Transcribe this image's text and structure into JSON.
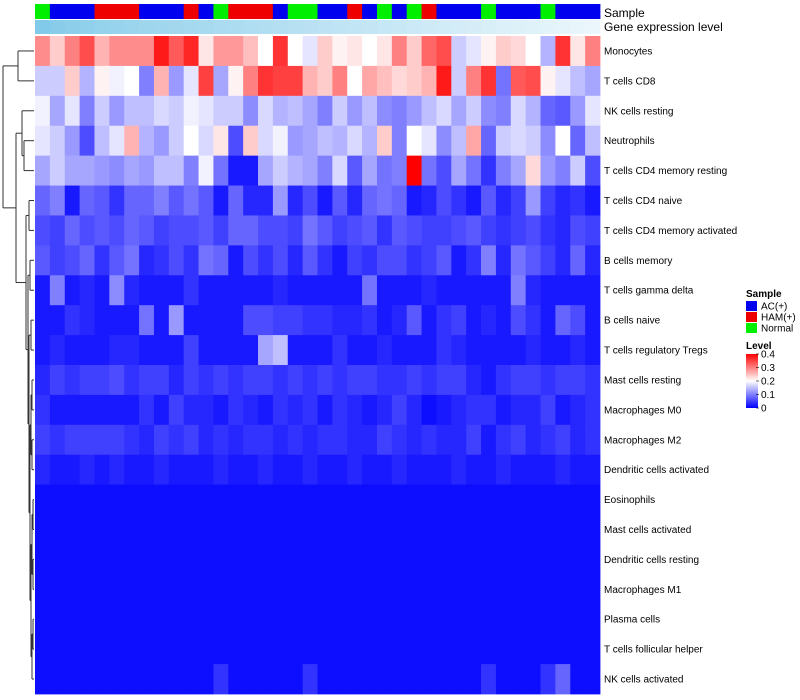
{
  "chart_data": {
    "type": "heatmap",
    "annotations": {
      "sample_label": "Sample",
      "gene_label": "Gene expression level"
    },
    "rows": [
      "Monocytes",
      "T cells CD8",
      "NK cells resting",
      "Neutrophils",
      "T cells CD4 memory resting",
      "T cells CD4 naive",
      "T cells CD4 memory activated",
      "B cells memory",
      "T cells gamma delta",
      "B cells naive",
      "T cells regulatory  Tregs",
      "Mast cells resting",
      "Macrophages M0",
      "Macrophages M2",
      "Dendritic cells activated",
      "Eosinophils",
      "Mast cells activated",
      "Dendritic cells resting",
      "Macrophages M1",
      "Plasma cells",
      "T cells follicular helper",
      "NK cells activated"
    ],
    "sample_groups": [
      "N",
      "A",
      "A",
      "A",
      "H",
      "H",
      "H",
      "A",
      "A",
      "A",
      "H",
      "A",
      "N",
      "H",
      "H",
      "H",
      "A",
      "N",
      "N",
      "A",
      "A",
      "H",
      "A",
      "N",
      "A",
      "N",
      "H",
      "A",
      "A",
      "A",
      "N",
      "A",
      "A",
      "A",
      "N",
      "A",
      "A",
      "A"
    ],
    "gene_expression_level": [
      0.97,
      0.92,
      0.88,
      0.85,
      0.82,
      0.8,
      0.78,
      0.75,
      0.73,
      0.72,
      0.7,
      0.68,
      0.66,
      0.64,
      0.62,
      0.6,
      0.58,
      0.56,
      0.54,
      0.52,
      0.5,
      0.48,
      0.46,
      0.44,
      0.42,
      0.4,
      0.38,
      0.36,
      0.34,
      0.32,
      0.3,
      0.28,
      0.26,
      0.24,
      0.22,
      0.2,
      0.18,
      0.16
    ],
    "values": [
      [
        0.29,
        0.24,
        0.3,
        0.34,
        0.26,
        0.29,
        0.29,
        0.29,
        0.38,
        0.33,
        0.37,
        0.22,
        0.28,
        0.28,
        0.25,
        0.2,
        0.36,
        0.2,
        0.18,
        0.24,
        0.21,
        0.22,
        0.2,
        0.22,
        0.3,
        0.24,
        0.32,
        0.34,
        0.16,
        0.18,
        0.21,
        0.24,
        0.23,
        0.2,
        0.14,
        0.36,
        0.22,
        0.3
      ],
      [
        0.16,
        0.16,
        0.24,
        0.14,
        0.21,
        0.19,
        0.2,
        0.1,
        0.26,
        0.12,
        0.18,
        0.35,
        0.13,
        0.21,
        0.3,
        0.36,
        0.35,
        0.35,
        0.26,
        0.24,
        0.3,
        0.2,
        0.27,
        0.25,
        0.23,
        0.24,
        0.26,
        0.38,
        0.16,
        0.3,
        0.36,
        0.09,
        0.33,
        0.34,
        0.21,
        0.18,
        0.15,
        0.13
      ],
      [
        0.19,
        0.13,
        0.18,
        0.1,
        0.16,
        0.12,
        0.15,
        0.15,
        0.17,
        0.16,
        0.19,
        0.18,
        0.16,
        0.16,
        0.11,
        0.17,
        0.14,
        0.15,
        0.13,
        0.1,
        0.16,
        0.12,
        0.15,
        0.11,
        0.1,
        0.12,
        0.15,
        0.17,
        0.13,
        0.16,
        0.11,
        0.1,
        0.17,
        0.14,
        0.08,
        0.07,
        0.12,
        0.18
      ],
      [
        0.18,
        0.16,
        0.12,
        0.06,
        0.15,
        0.18,
        0.26,
        0.14,
        0.12,
        0.16,
        0.2,
        0.17,
        0.22,
        0.06,
        0.24,
        0.17,
        0.19,
        0.12,
        0.13,
        0.15,
        0.14,
        0.17,
        0.14,
        0.24,
        0.1,
        0.2,
        0.18,
        0.11,
        0.15,
        0.27,
        0.08,
        0.16,
        0.17,
        0.16,
        0.11,
        0.2,
        0.08,
        0.15
      ],
      [
        0.13,
        0.16,
        0.13,
        0.13,
        0.12,
        0.11,
        0.13,
        0.12,
        0.15,
        0.15,
        0.1,
        0.19,
        0.09,
        0.02,
        0.02,
        0.13,
        0.16,
        0.14,
        0.13,
        0.1,
        0.17,
        0.07,
        0.13,
        0.09,
        0.1,
        0.4,
        0.09,
        0.06,
        0.13,
        0.09,
        0.04,
        0.1,
        0.13,
        0.23,
        0.12,
        0.1,
        0.16,
        0.06
      ],
      [
        0.08,
        0.1,
        0.02,
        0.08,
        0.07,
        0.04,
        0.08,
        0.08,
        0.1,
        0.07,
        0.09,
        0.07,
        0.02,
        0.08,
        0.03,
        0.03,
        0.12,
        0.03,
        0.06,
        0.02,
        0.07,
        0.03,
        0.08,
        0.09,
        0.08,
        0.02,
        0.03,
        0.06,
        0.04,
        0.02,
        0.07,
        0.03,
        0.05,
        0.12,
        0.05,
        0.03,
        0.04,
        0.02
      ],
      [
        0.06,
        0.05,
        0.08,
        0.06,
        0.07,
        0.06,
        0.08,
        0.07,
        0.05,
        0.06,
        0.06,
        0.07,
        0.05,
        0.08,
        0.08,
        0.06,
        0.06,
        0.05,
        0.09,
        0.07,
        0.05,
        0.06,
        0.07,
        0.04,
        0.07,
        0.06,
        0.05,
        0.05,
        0.06,
        0.07,
        0.05,
        0.04,
        0.05,
        0.06,
        0.04,
        0.03,
        0.06,
        0.05
      ],
      [
        0.07,
        0.05,
        0.06,
        0.08,
        0.04,
        0.07,
        0.09,
        0.03,
        0.04,
        0.06,
        0.04,
        0.09,
        0.08,
        0.02,
        0.06,
        0.04,
        0.06,
        0.03,
        0.07,
        0.04,
        0.02,
        0.05,
        0.04,
        0.06,
        0.06,
        0.04,
        0.05,
        0.07,
        0.02,
        0.04,
        0.1,
        0.03,
        0.09,
        0.07,
        0.05,
        0.03,
        0.08,
        0.03
      ],
      [
        0.02,
        0.1,
        0.02,
        0.03,
        0.02,
        0.11,
        0.03,
        0.02,
        0.02,
        0.02,
        0.04,
        0.02,
        0.02,
        0.02,
        0.02,
        0.02,
        0.03,
        0.02,
        0.02,
        0.02,
        0.02,
        0.02,
        0.09,
        0.02,
        0.02,
        0.02,
        0.03,
        0.02,
        0.02,
        0.02,
        0.02,
        0.02,
        0.1,
        0.03,
        0.02,
        0.02,
        0.02,
        0.02
      ],
      [
        0.02,
        0.02,
        0.04,
        0.03,
        0.02,
        0.02,
        0.02,
        0.09,
        0.02,
        0.12,
        0.02,
        0.02,
        0.02,
        0.02,
        0.06,
        0.06,
        0.05,
        0.05,
        0.04,
        0.04,
        0.03,
        0.03,
        0.04,
        0.02,
        0.03,
        0.07,
        0.02,
        0.04,
        0.05,
        0.02,
        0.03,
        0.02,
        0.06,
        0.04,
        0.02,
        0.08,
        0.06,
        0.02
      ],
      [
        0.02,
        0.03,
        0.02,
        0.02,
        0.02,
        0.03,
        0.03,
        0.02,
        0.02,
        0.02,
        0.05,
        0.02,
        0.02,
        0.02,
        0.02,
        0.13,
        0.15,
        0.02,
        0.02,
        0.02,
        0.04,
        0.02,
        0.02,
        0.03,
        0.02,
        0.02,
        0.02,
        0.04,
        0.03,
        0.02,
        0.02,
        0.02,
        0.02,
        0.03,
        0.02,
        0.02,
        0.03,
        0.02
      ],
      [
        0.03,
        0.05,
        0.04,
        0.05,
        0.05,
        0.06,
        0.04,
        0.05,
        0.05,
        0.03,
        0.05,
        0.04,
        0.05,
        0.04,
        0.05,
        0.05,
        0.04,
        0.05,
        0.04,
        0.05,
        0.04,
        0.05,
        0.05,
        0.04,
        0.04,
        0.05,
        0.04,
        0.05,
        0.05,
        0.03,
        0.02,
        0.04,
        0.05,
        0.05,
        0.04,
        0.05,
        0.05,
        0.04
      ],
      [
        0.04,
        0.02,
        0.02,
        0.02,
        0.02,
        0.02,
        0.02,
        0.04,
        0.02,
        0.05,
        0.03,
        0.03,
        0.02,
        0.04,
        0.03,
        0.02,
        0.04,
        0.03,
        0.04,
        0.02,
        0.04,
        0.03,
        0.02,
        0.03,
        0.05,
        0.03,
        0.01,
        0.02,
        0.03,
        0.04,
        0.04,
        0.02,
        0.03,
        0.03,
        0.05,
        0.02,
        0.03,
        0.04
      ],
      [
        0.05,
        0.04,
        0.05,
        0.05,
        0.05,
        0.05,
        0.04,
        0.03,
        0.05,
        0.04,
        0.05,
        0.03,
        0.04,
        0.03,
        0.04,
        0.04,
        0.03,
        0.04,
        0.03,
        0.04,
        0.04,
        0.03,
        0.03,
        0.05,
        0.04,
        0.03,
        0.04,
        0.03,
        0.03,
        0.05,
        0.02,
        0.04,
        0.05,
        0.03,
        0.04,
        0.05,
        0.03,
        0.04
      ],
      [
        0.03,
        0.02,
        0.02,
        0.03,
        0.02,
        0.03,
        0.02,
        0.02,
        0.03,
        0.02,
        0.02,
        0.02,
        0.03,
        0.02,
        0.02,
        0.03,
        0.02,
        0.02,
        0.03,
        0.02,
        0.02,
        0.03,
        0.02,
        0.02,
        0.03,
        0.02,
        0.02,
        0.02,
        0.03,
        0.02,
        0.02,
        0.03,
        0.02,
        0.02,
        0.02,
        0.03,
        0.02,
        0.02
      ],
      [
        0.01,
        0.01,
        0.01,
        0.01,
        0.01,
        0.01,
        0.01,
        0.01,
        0.01,
        0.01,
        0.01,
        0.01,
        0.01,
        0.01,
        0.01,
        0.01,
        0.01,
        0.01,
        0.01,
        0.01,
        0.01,
        0.01,
        0.01,
        0.01,
        0.01,
        0.01,
        0.01,
        0.01,
        0.01,
        0.01,
        0.01,
        0.01,
        0.01,
        0.01,
        0.01,
        0.01,
        0.01,
        0.01
      ],
      [
        0.01,
        0.01,
        0.01,
        0.01,
        0.01,
        0.01,
        0.01,
        0.01,
        0.01,
        0.01,
        0.01,
        0.01,
        0.01,
        0.01,
        0.01,
        0.01,
        0.01,
        0.01,
        0.01,
        0.01,
        0.01,
        0.01,
        0.01,
        0.01,
        0.01,
        0.01,
        0.01,
        0.01,
        0.01,
        0.01,
        0.01,
        0.01,
        0.01,
        0.01,
        0.01,
        0.01,
        0.01,
        0.01
      ],
      [
        0.01,
        0.01,
        0.01,
        0.01,
        0.01,
        0.01,
        0.01,
        0.01,
        0.01,
        0.01,
        0.01,
        0.01,
        0.01,
        0.01,
        0.01,
        0.01,
        0.01,
        0.01,
        0.01,
        0.01,
        0.01,
        0.01,
        0.01,
        0.01,
        0.01,
        0.01,
        0.01,
        0.01,
        0.01,
        0.01,
        0.01,
        0.01,
        0.01,
        0.01,
        0.01,
        0.01,
        0.01,
        0.01
      ],
      [
        0.01,
        0.01,
        0.01,
        0.01,
        0.01,
        0.01,
        0.01,
        0.01,
        0.01,
        0.01,
        0.01,
        0.01,
        0.01,
        0.01,
        0.01,
        0.01,
        0.01,
        0.01,
        0.01,
        0.01,
        0.01,
        0.01,
        0.01,
        0.01,
        0.01,
        0.01,
        0.01,
        0.01,
        0.01,
        0.01,
        0.01,
        0.01,
        0.01,
        0.01,
        0.01,
        0.01,
        0.01,
        0.01
      ],
      [
        0.01,
        0.01,
        0.01,
        0.01,
        0.01,
        0.01,
        0.01,
        0.01,
        0.01,
        0.01,
        0.01,
        0.01,
        0.01,
        0.01,
        0.01,
        0.01,
        0.01,
        0.01,
        0.01,
        0.01,
        0.01,
        0.01,
        0.01,
        0.01,
        0.01,
        0.01,
        0.01,
        0.01,
        0.01,
        0.01,
        0.01,
        0.01,
        0.01,
        0.01,
        0.01,
        0.01,
        0.01,
        0.01
      ],
      [
        0.01,
        0.01,
        0.01,
        0.01,
        0.01,
        0.01,
        0.01,
        0.01,
        0.01,
        0.01,
        0.01,
        0.01,
        0.01,
        0.01,
        0.01,
        0.01,
        0.01,
        0.01,
        0.01,
        0.01,
        0.01,
        0.01,
        0.01,
        0.01,
        0.01,
        0.01,
        0.01,
        0.01,
        0.01,
        0.01,
        0.01,
        0.01,
        0.01,
        0.01,
        0.01,
        0.01,
        0.01,
        0.01
      ],
      [
        0.01,
        0.01,
        0.01,
        0.01,
        0.01,
        0.01,
        0.01,
        0.01,
        0.01,
        0.01,
        0.01,
        0.01,
        0.04,
        0.01,
        0.01,
        0.01,
        0.01,
        0.01,
        0.04,
        0.01,
        0.01,
        0.01,
        0.01,
        0.01,
        0.01,
        0.01,
        0.01,
        0.01,
        0.01,
        0.01,
        0.04,
        0.01,
        0.01,
        0.01,
        0.04,
        0.08,
        0.01,
        0.01
      ]
    ],
    "legend": {
      "sample_title": "Sample",
      "sample_items": [
        {
          "label": "AC(+)",
          "color": "#0000ee"
        },
        {
          "label": "HAM(+)",
          "color": "#ee0000"
        },
        {
          "label": "Normal",
          "color": "#00ee00"
        }
      ],
      "level_title": "Level",
      "level_ticks": [
        0.4,
        0.3,
        0.2,
        0.1,
        0
      ],
      "range": [
        0,
        0.4
      ]
    },
    "colors": {
      "low": "#0000ff",
      "mid": "#ffffff",
      "high": "#ff0000",
      "gene_low": "#ffffff",
      "gene_high": "#7ec8e8"
    }
  }
}
